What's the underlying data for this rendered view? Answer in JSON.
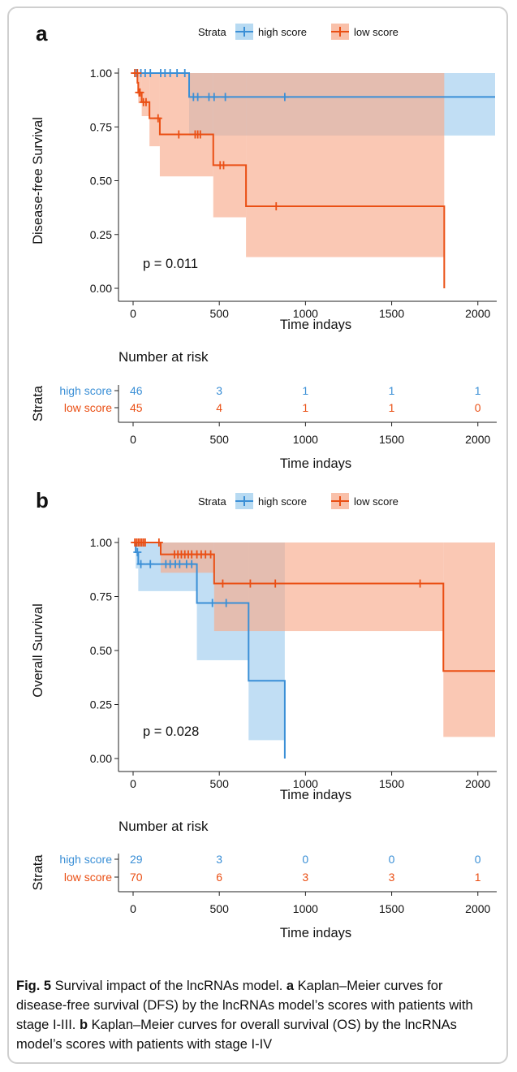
{
  "chart_data": [
    {
      "type": "line",
      "panel_label": "a",
      "legend_title": "Strata",
      "legend_position": "top-center",
      "ylabel": "Disease-free Survival",
      "xlabel": "Time indays",
      "xlim": [
        0,
        2100
      ],
      "ylim": [
        0,
        1
      ],
      "x_ticks": [
        "0",
        "500",
        "1000",
        "1500",
        "2000"
      ],
      "y_ticks": [
        "0.00",
        "0.25",
        "0.50",
        "0.75",
        "1.00"
      ],
      "pvalue": "p = 0.011",
      "series": [
        {
          "name": "high score",
          "color": "#3a8fd6",
          "band_color": "#9fcdee",
          "steps": [
            [
              0,
              1.0
            ],
            [
              325,
              0.889
            ],
            [
              2100,
              0.889
            ]
          ],
          "band": [
            [
              0,
              1.0,
              1.0
            ],
            [
              325,
              0.71,
              1.0
            ],
            [
              2100,
              0.71,
              1.0
            ]
          ],
          "censors": [
            [
              20,
              1.0
            ],
            [
              45,
              1.0
            ],
            [
              70,
              1.0
            ],
            [
              100,
              1.0
            ],
            [
              160,
              1.0
            ],
            [
              185,
              1.0
            ],
            [
              215,
              1.0
            ],
            [
              255,
              1.0
            ],
            [
              300,
              1.0
            ],
            [
              350,
              0.889
            ],
            [
              375,
              0.889
            ],
            [
              440,
              0.889
            ],
            [
              470,
              0.889
            ],
            [
              535,
              0.889
            ],
            [
              880,
              0.889
            ]
          ]
        },
        {
          "name": "low score",
          "color": "#ea4f14",
          "band_color": "#f7ab8c",
          "steps": [
            [
              0,
              1.0
            ],
            [
              25,
              0.955
            ],
            [
              30,
              0.91
            ],
            [
              50,
              0.865
            ],
            [
              95,
              0.79
            ],
            [
              155,
              0.715
            ],
            [
              465,
              0.572
            ],
            [
              655,
              0.381
            ],
            [
              1805,
              0.0
            ]
          ],
          "band": [
            [
              0,
              1.0,
              1.0
            ],
            [
              25,
              0.9,
              1.0
            ],
            [
              30,
              0.86,
              1.0
            ],
            [
              50,
              0.8,
              1.0
            ],
            [
              95,
              0.66,
              1.0
            ],
            [
              155,
              0.52,
              1.0
            ],
            [
              465,
              0.33,
              1.0
            ],
            [
              655,
              0.145,
              1.0
            ],
            [
              1805,
              0.0,
              0.0
            ]
          ],
          "censors": [
            [
              10,
              1.0
            ],
            [
              25,
              1.0
            ],
            [
              35,
              0.91
            ],
            [
              40,
              0.91
            ],
            [
              60,
              0.865
            ],
            [
              75,
              0.865
            ],
            [
              145,
              0.79
            ],
            [
              265,
              0.715
            ],
            [
              360,
              0.715
            ],
            [
              375,
              0.715
            ],
            [
              390,
              0.715
            ],
            [
              505,
              0.572
            ],
            [
              525,
              0.572
            ],
            [
              830,
              0.381
            ]
          ]
        }
      ],
      "risk_table": {
        "title": "Number at risk",
        "ylabel": "Strata",
        "xlabel": "Time indays",
        "times": [
          0,
          500,
          1000,
          1500,
          2000
        ],
        "rows": [
          {
            "label": "high score",
            "counts": [
              "46",
              "3",
              "1",
              "1",
              "1"
            ]
          },
          {
            "label": "low score",
            "counts": [
              "45",
              "4",
              "1",
              "1",
              "0"
            ]
          }
        ]
      }
    },
    {
      "type": "line",
      "panel_label": "b",
      "legend_title": "Strata",
      "legend_position": "top-center",
      "ylabel": "Overall Survival",
      "xlabel": "Time indays",
      "xlim": [
        0,
        2100
      ],
      "ylim": [
        0,
        1
      ],
      "x_ticks": [
        "0",
        "500",
        "1000",
        "1500",
        "2000"
      ],
      "y_ticks": [
        "0.00",
        "0.25",
        "0.50",
        "0.75",
        "1.00"
      ],
      "pvalue": "p = 0.028",
      "series": [
        {
          "name": "high score",
          "color": "#3a8fd6",
          "band_color": "#9fcdee",
          "steps": [
            [
              0,
              1.0
            ],
            [
              15,
              0.955
            ],
            [
              30,
              0.9
            ],
            [
              370,
              0.72
            ],
            [
              670,
              0.36
            ],
            [
              880,
              0.0
            ]
          ],
          "band": [
            [
              0,
              1.0,
              1.0
            ],
            [
              15,
              0.88,
              1.0
            ],
            [
              30,
              0.775,
              1.0
            ],
            [
              370,
              0.455,
              1.0
            ],
            [
              670,
              0.085,
              1.0
            ],
            [
              880,
              0.0,
              0.0
            ]
          ],
          "censors": [
            [
              25,
              0.955
            ],
            [
              45,
              0.9
            ],
            [
              100,
              0.9
            ],
            [
              190,
              0.9
            ],
            [
              215,
              0.9
            ],
            [
              245,
              0.9
            ],
            [
              270,
              0.9
            ],
            [
              310,
              0.9
            ],
            [
              340,
              0.9
            ],
            [
              460,
              0.72
            ],
            [
              540,
              0.72
            ]
          ]
        },
        {
          "name": "low score",
          "color": "#ea4f14",
          "band_color": "#f7ab8c",
          "steps": [
            [
              0,
              1.0
            ],
            [
              160,
              0.945
            ],
            [
              470,
              0.81
            ],
            [
              1800,
              0.405
            ],
            [
              2100,
              0.405
            ]
          ],
          "band": [
            [
              0,
              1.0,
              1.0
            ],
            [
              160,
              0.86,
              1.0
            ],
            [
              470,
              0.59,
              1.0
            ],
            [
              1800,
              0.1,
              1.0
            ],
            [
              2100,
              0.1,
              1.0
            ]
          ],
          "censors": [
            [
              10,
              1.0
            ],
            [
              20,
              1.0
            ],
            [
              30,
              1.0
            ],
            [
              40,
              1.0
            ],
            [
              50,
              1.0
            ],
            [
              60,
              1.0
            ],
            [
              70,
              1.0
            ],
            [
              150,
              1.0
            ],
            [
              240,
              0.945
            ],
            [
              260,
              0.945
            ],
            [
              280,
              0.945
            ],
            [
              300,
              0.945
            ],
            [
              320,
              0.945
            ],
            [
              340,
              0.945
            ],
            [
              370,
              0.945
            ],
            [
              395,
              0.945
            ],
            [
              420,
              0.945
            ],
            [
              450,
              0.945
            ],
            [
              520,
              0.81
            ],
            [
              680,
              0.81
            ],
            [
              825,
              0.81
            ],
            [
              1665,
              0.81
            ]
          ]
        }
      ],
      "risk_table": {
        "title": "Number at risk",
        "ylabel": "Strata",
        "xlabel": "Time indays",
        "times": [
          0,
          500,
          1000,
          1500,
          2000
        ],
        "rows": [
          {
            "label": "high score",
            "counts": [
              "29",
              "3",
              "0",
              "0",
              "0"
            ]
          },
          {
            "label": "low score",
            "counts": [
              "70",
              "6",
              "3",
              "3",
              "1"
            ]
          }
        ]
      }
    }
  ],
  "caption": {
    "fig_label": "Fig. 5",
    "intro": " Survival impact of the lncRNAs model. ",
    "part_a_label": "a",
    "part_a_text": " Kaplan–Meier curves for disease-free survival (DFS) by the lncRNAs model’s scores with patients with stage I-III. ",
    "part_b_label": "b",
    "part_b_text": " Kaplan–Meier curves for overall survival (OS) by the lncRNAs model’s scores with patients with stage I-IV"
  }
}
